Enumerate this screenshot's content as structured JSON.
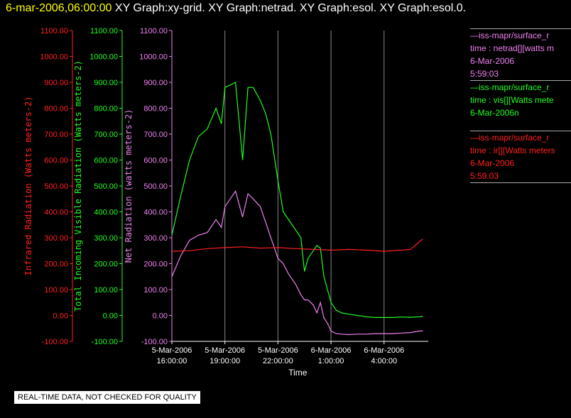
{
  "title": {
    "date": "6-mar-2006,06:00:00",
    "rest": "XY Graph:xy-grid.  XY Graph:netrad.  XY Graph:esol.  XY Graph:esol.0."
  },
  "colors": {
    "ir": "#ff2020",
    "vis": "#20ff20",
    "net": "#ee82ee",
    "grid": "#888888",
    "axis": "#ffffff"
  },
  "chart_data": {
    "type": "line",
    "xlabel": "Time",
    "x_ticks": [
      {
        "v": 0,
        "l1": "5-Mar-2006",
        "l2": "16:00:00"
      },
      {
        "v": 3,
        "l1": "5-Mar-2006",
        "l2": "19:00:00"
      },
      {
        "v": 6,
        "l1": "5-Mar-2006",
        "l2": "22:00:00"
      },
      {
        "v": 9,
        "l1": "6-Mar-2006",
        "l2": "1:00:00"
      },
      {
        "v": 12,
        "l1": "6-Mar-2006",
        "l2": "4:00:00"
      }
    ],
    "xlim": [
      0,
      14.5
    ],
    "ylim": [
      -100,
      1100
    ],
    "y_ticks": [
      "1100.00",
      "1000.00",
      "900.00",
      "800.00",
      "700.00",
      "600.00",
      "500.00",
      "400.00",
      "300.00",
      "200.00",
      "100.00",
      "0.00",
      "-100.00"
    ],
    "y_tick_values": [
      1100,
      1000,
      900,
      800,
      700,
      600,
      500,
      400,
      300,
      200,
      100,
      0,
      -100
    ],
    "axes": [
      {
        "key": "ir",
        "label": "Infrared Radiation (Watts meters-2)"
      },
      {
        "key": "vis",
        "label": "Total Incoming Visible Radiation (Watts meters-2)"
      },
      {
        "key": "net",
        "label": "Net Radiation (watts meters-2)"
      }
    ],
    "series": [
      {
        "key": "vis",
        "x": [
          0,
          0.5,
          1,
          1.5,
          2,
          2.5,
          2.8,
          3,
          3.3,
          3.6,
          4,
          4.3,
          4.6,
          5,
          5.3,
          5.6,
          6,
          6.3,
          6.6,
          7,
          7.3,
          7.5,
          7.7,
          8,
          8.2,
          8.4,
          8.6,
          8.8,
          9,
          9.3,
          9.6,
          10,
          10.5,
          11,
          11.5,
          12,
          12.5,
          13,
          13.5,
          14,
          14.2
        ],
        "y": [
          310,
          460,
          600,
          690,
          720,
          800,
          740,
          880,
          890,
          900,
          600,
          880,
          880,
          830,
          780,
          700,
          520,
          400,
          370,
          330,
          300,
          170,
          220,
          250,
          270,
          260,
          150,
          100,
          50,
          20,
          10,
          5,
          0,
          -5,
          -8,
          -8,
          -8,
          -6,
          -7,
          -5,
          -3
        ]
      },
      {
        "key": "net",
        "x": [
          0,
          0.5,
          1,
          1.5,
          2,
          2.5,
          2.8,
          3,
          3.3,
          3.6,
          4,
          4.3,
          4.6,
          5,
          5.3,
          5.6,
          6,
          6.3,
          6.6,
          7,
          7.3,
          7.5,
          7.7,
          8,
          8.2,
          8.4,
          8.6,
          8.8,
          9,
          9.3,
          9.6,
          10,
          10.5,
          11,
          11.5,
          12,
          12.5,
          13,
          13.5,
          14,
          14.2
        ],
        "y": [
          150,
          230,
          290,
          310,
          320,
          370,
          340,
          420,
          450,
          480,
          380,
          470,
          450,
          420,
          360,
          300,
          220,
          200,
          160,
          120,
          80,
          60,
          60,
          40,
          10,
          50,
          -10,
          -30,
          -60,
          -70,
          -72,
          -74,
          -72,
          -72,
          -70,
          -70,
          -70,
          -68,
          -66,
          -60,
          -60
        ]
      },
      {
        "key": "ir",
        "x": [
          0,
          1,
          2,
          3,
          4,
          5,
          6,
          7,
          8,
          9,
          10,
          11,
          12,
          13,
          13.5,
          14,
          14.2
        ],
        "y": [
          248,
          250,
          258,
          262,
          265,
          260,
          262,
          258,
          255,
          252,
          255,
          252,
          248,
          252,
          255,
          285,
          295
        ]
      }
    ]
  },
  "legend": [
    {
      "key": "net",
      "lines": [
        "—iss-mapr/surface_r",
        "time : netrad[][watts m",
        "6-Mar-2006",
        "5:59:03"
      ]
    },
    {
      "key": "vis",
      "lines": [
        "—iss-mapr/surface_r",
        "time : vis[][Watts mete",
        "6-Mar-2006n"
      ]
    },
    {
      "key": "ir",
      "lines": [
        "—iss-mapr/surface_r",
        "time : ir[][Watts meters",
        "6-Mar-2006",
        "5:59:03"
      ]
    }
  ],
  "notice": "REAL-TIME DATA, NOT CHECKED FOR QUALITY"
}
